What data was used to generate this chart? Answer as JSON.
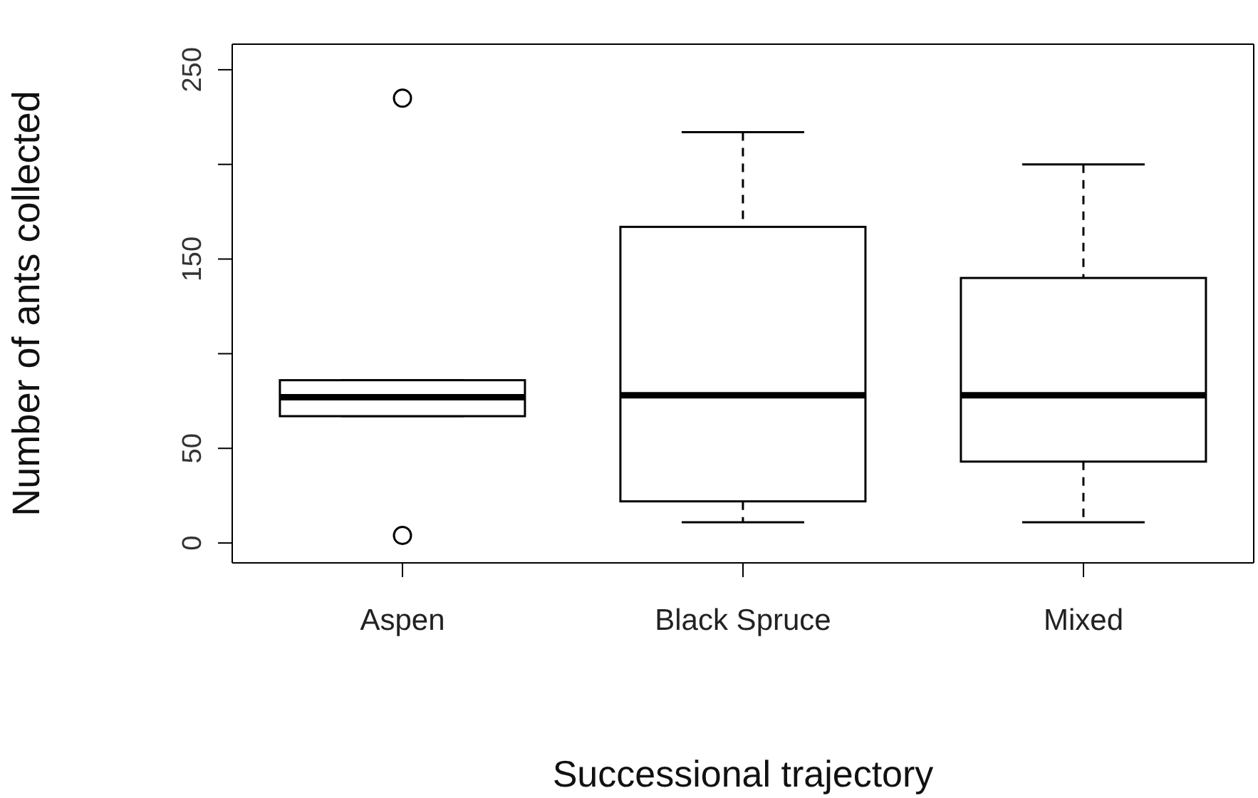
{
  "chart_data": {
    "type": "box",
    "xlabel": "Successional trajectory",
    "ylabel": "Number of ants collected",
    "categories": [
      "Aspen",
      "Black Spruce",
      "Mixed"
    ],
    "boxes": [
      {
        "low": 67,
        "q1": 67,
        "median": 77,
        "q3": 86,
        "high": 86,
        "outliers": [
          235,
          4
        ]
      },
      {
        "low": 11,
        "q1": 22,
        "median": 78,
        "q3": 167,
        "high": 217
      },
      {
        "low": 11,
        "q1": 43,
        "median": 78,
        "q3": 140,
        "high": 200
      }
    ],
    "ylim": [
      -10.5,
      263.5
    ],
    "yticks": [
      0,
      50,
      {
        "value": 100,
        "label": null
      },
      150,
      {
        "value": 200,
        "label": null
      },
      250
    ]
  }
}
